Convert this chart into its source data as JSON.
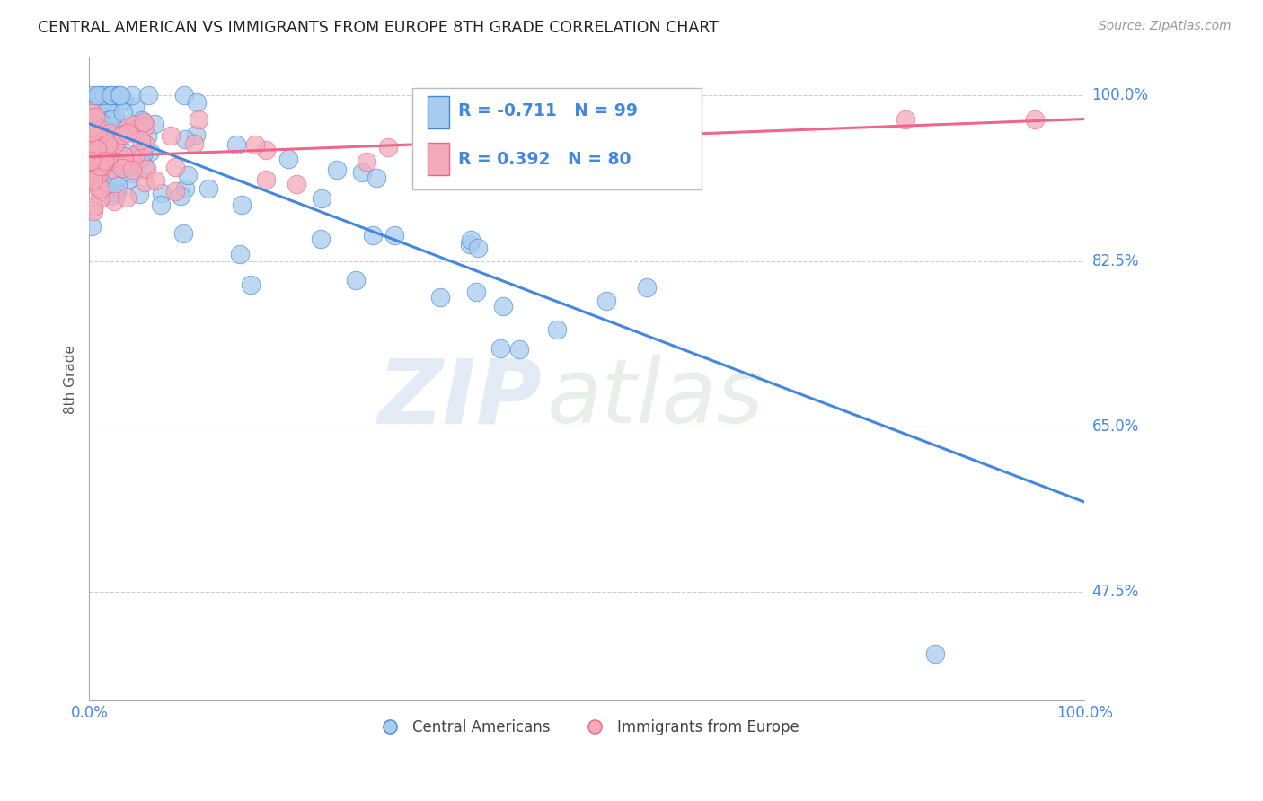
{
  "title": "CENTRAL AMERICAN VS IMMIGRANTS FROM EUROPE 8TH GRADE CORRELATION CHART",
  "source": "Source: ZipAtlas.com",
  "ylabel": "8th Grade",
  "xlim": [
    0.0,
    1.0
  ],
  "ylim": [
    0.36,
    1.04
  ],
  "yticks": [
    0.475,
    0.65,
    0.825,
    1.0
  ],
  "ytick_labels": [
    "47.5%",
    "65.0%",
    "82.5%",
    "100.0%"
  ],
  "blue_R": -0.711,
  "blue_N": 99,
  "pink_R": 0.392,
  "pink_N": 80,
  "blue_color": "#A8CCEE",
  "pink_color": "#F4AABB",
  "blue_line_color": "#4488DD",
  "pink_line_color": "#EE6688",
  "legend_blue_label": "Central Americans",
  "legend_pink_label": "Immigrants from Europe",
  "watermark_zip": "ZIP",
  "watermark_atlas": "atlas",
  "blue_trend_x0": 0.0,
  "blue_trend_y0": 0.97,
  "blue_trend_x1": 1.0,
  "blue_trend_y1": 0.57,
  "pink_trend_x0": 0.0,
  "pink_trend_y0": 0.935,
  "pink_trend_x1": 1.0,
  "pink_trend_y1": 0.975
}
